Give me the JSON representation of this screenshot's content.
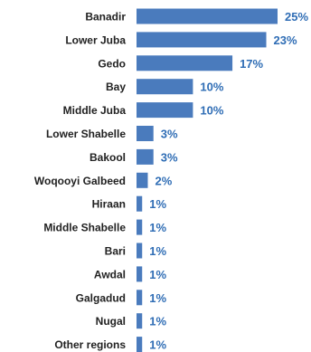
{
  "chart_data": {
    "type": "bar",
    "orientation": "horizontal",
    "categories": [
      "Banadir",
      "Lower Juba",
      "Gedo",
      "Bay",
      "Middle Juba",
      "Lower Shabelle",
      "Bakool",
      "Woqooyi Galbeed",
      "Hiraan",
      "Middle Shabelle",
      "Bari",
      "Awdal",
      "Galgadud",
      "Nugal",
      "Other regions"
    ],
    "values": [
      25,
      23,
      17,
      10,
      10,
      3,
      3,
      2,
      1,
      1,
      1,
      1,
      1,
      1,
      1
    ],
    "value_labels": [
      "25%",
      "23%",
      "17%",
      "10%",
      "10%",
      "3%",
      "3%",
      "2%",
      "1%",
      "1%",
      "1%",
      "1%",
      "1%",
      "1%",
      "1%"
    ],
    "unit": "%",
    "xlim": [
      0,
      25
    ],
    "grid": false,
    "legend": "none",
    "bar_color": "#4a7bbd",
    "label_color": "#2f6db5"
  }
}
